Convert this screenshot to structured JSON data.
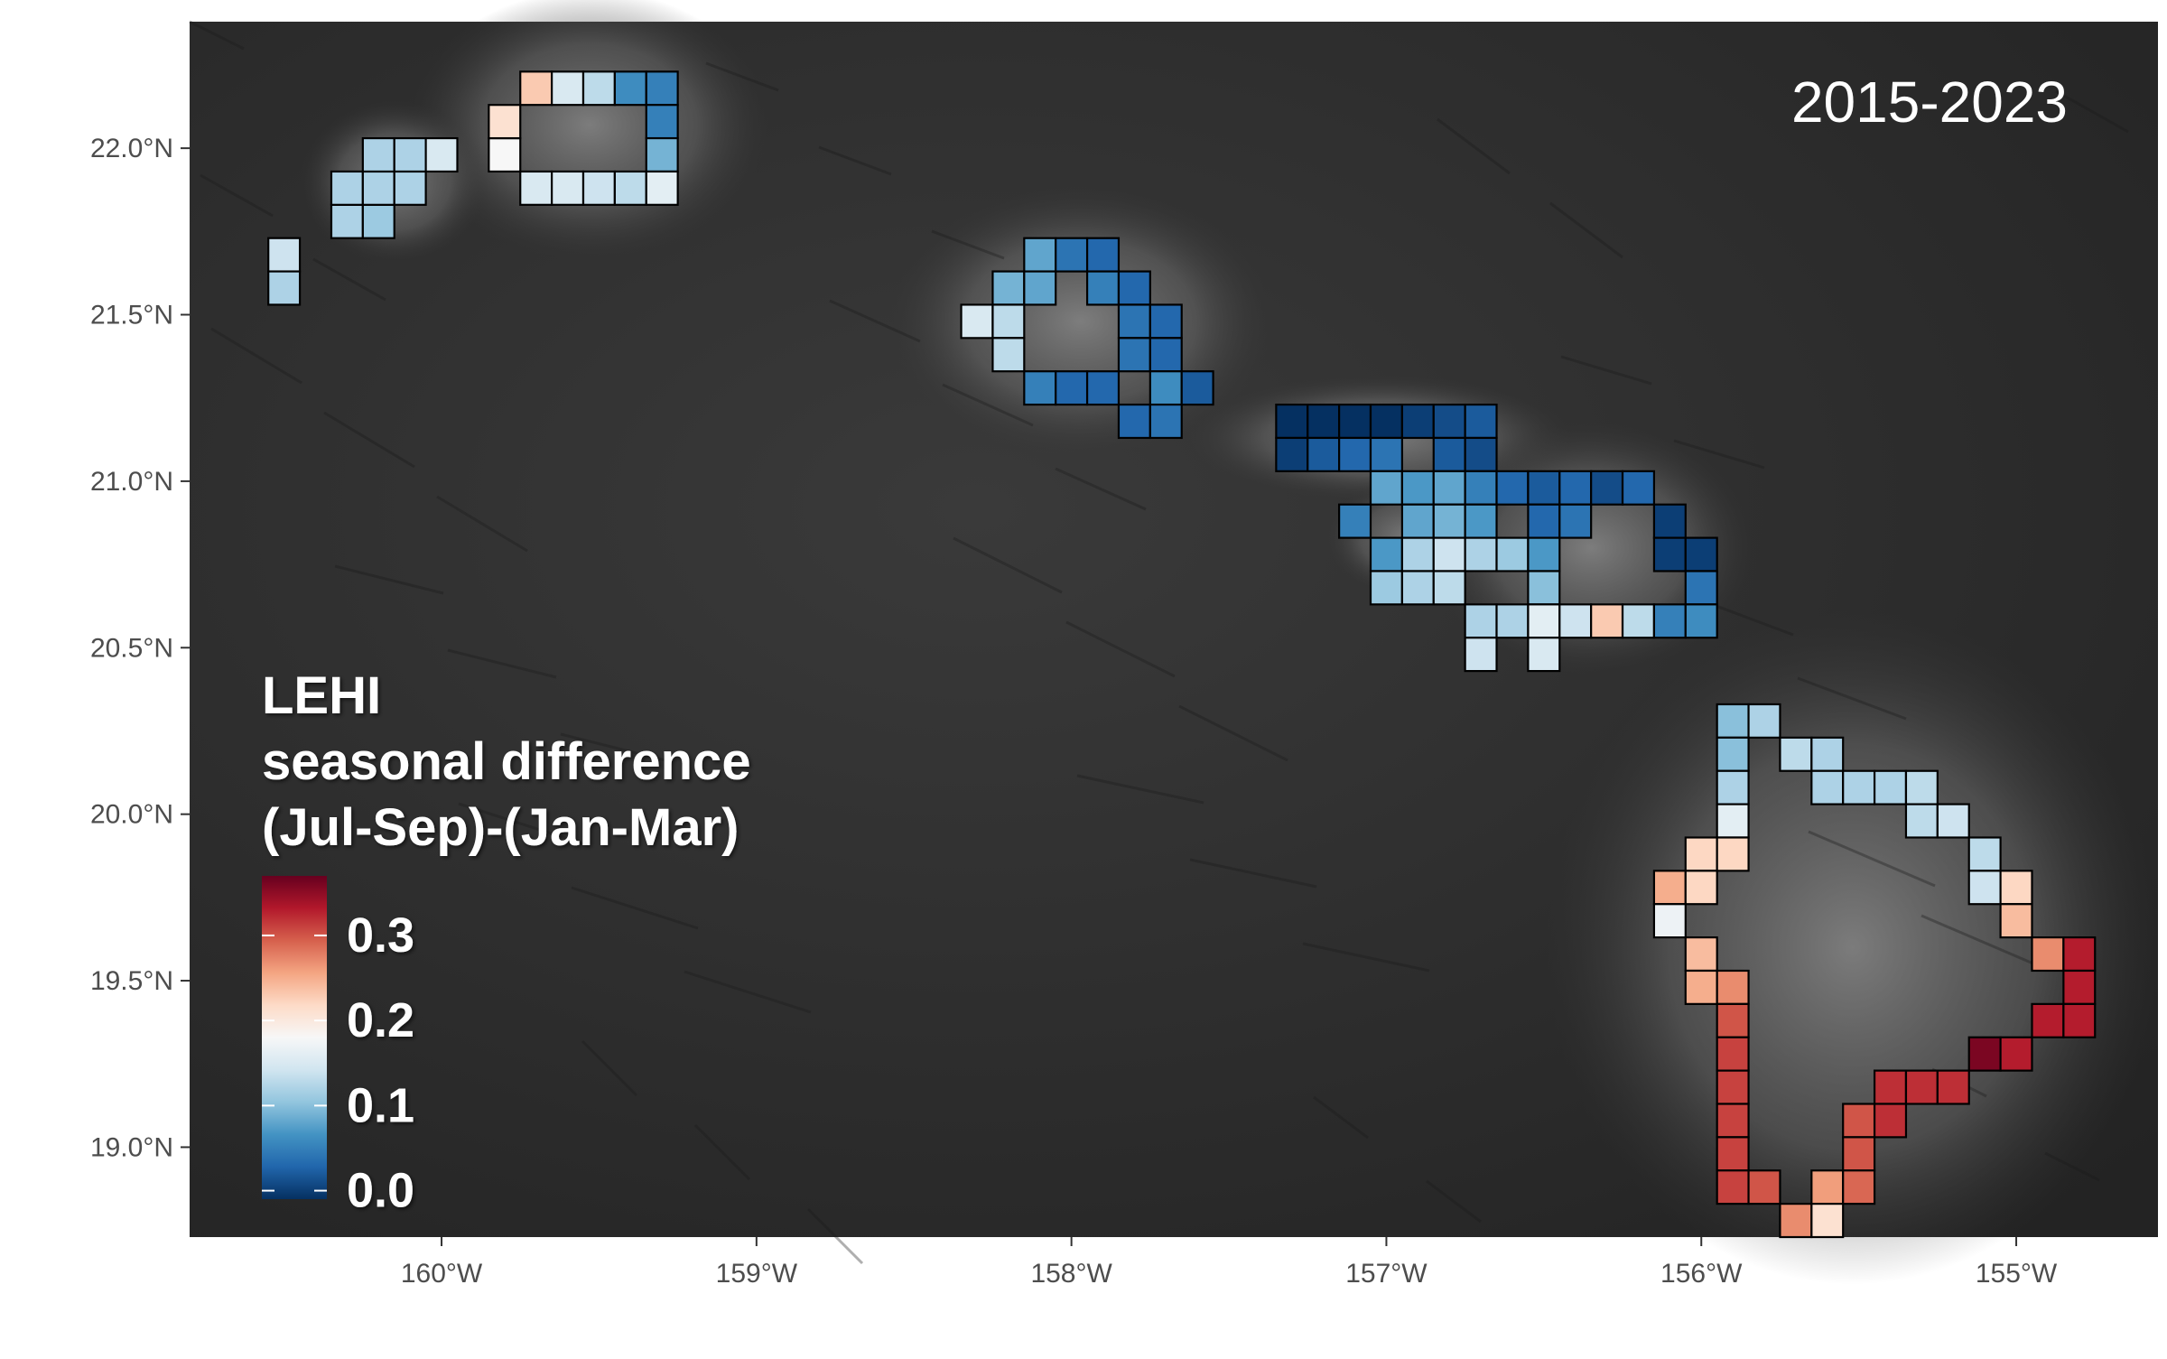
{
  "map": {
    "period_label": "2015-2023",
    "extent": {
      "lon_min": -160.8,
      "lon_max": -154.55,
      "lat_min": 18.73,
      "lat_max": 22.38
    },
    "x_axis": {
      "ticks": [
        -160,
        -159,
        -158,
        -157,
        -156,
        -155
      ],
      "labels": [
        "160°W",
        "159°W",
        "158°W",
        "157°W",
        "156°W",
        "155°W"
      ]
    },
    "y_axis": {
      "ticks": [
        19.0,
        19.5,
        20.0,
        20.5,
        21.0,
        21.5,
        22.0
      ],
      "labels": [
        "19.0°N",
        "19.5°N",
        "20.0°N",
        "20.5°N",
        "21.0°N",
        "21.5°N",
        "22.0°N"
      ]
    },
    "basemap": "dark grayscale satellite terrain",
    "cell_size_deg": 0.1
  },
  "legend": {
    "title_lines": [
      "LEHI",
      "seasonal difference",
      "(Jul-Sep)-(Jan-Mar)"
    ],
    "ticks": [
      0.0,
      0.1,
      0.2,
      0.3
    ],
    "tick_labels": [
      "0.0",
      "0.1",
      "0.2",
      "0.3"
    ],
    "range": [
      -0.01,
      0.37
    ],
    "palette": [
      "#053061",
      "#2166ac",
      "#4393c3",
      "#92c5de",
      "#d1e5f0",
      "#f7f7f7",
      "#fddbc7",
      "#f4a582",
      "#d6604d",
      "#b2182b",
      "#67001f"
    ]
  },
  "chart_data": {
    "type": "heatmap",
    "variable": "LEHI seasonal difference (Jul-Sep)-(Jan-Mar)",
    "period": "2015-2023",
    "cell_size_deg": 0.1,
    "cells": [
      {
        "lon": -160.5,
        "lat": 21.68,
        "value": 0.14
      },
      {
        "lon": -160.5,
        "lat": 21.58,
        "value": 0.12
      },
      {
        "lon": -160.3,
        "lat": 21.78,
        "value": 0.12
      },
      {
        "lon": -160.2,
        "lat": 21.78,
        "value": 0.11
      },
      {
        "lon": -160.3,
        "lat": 21.88,
        "value": 0.12
      },
      {
        "lon": -160.2,
        "lat": 21.88,
        "value": 0.12
      },
      {
        "lon": -160.1,
        "lat": 21.88,
        "value": 0.12
      },
      {
        "lon": -160.2,
        "lat": 21.98,
        "value": 0.12
      },
      {
        "lon": -160.1,
        "lat": 21.98,
        "value": 0.12
      },
      {
        "lon": -160.0,
        "lat": 21.98,
        "value": 0.15
      },
      {
        "lon": -159.8,
        "lat": 21.98,
        "value": 0.18
      },
      {
        "lon": -159.8,
        "lat": 22.08,
        "value": 0.21
      },
      {
        "lon": -159.7,
        "lat": 22.18,
        "value": 0.23
      },
      {
        "lon": -159.6,
        "lat": 22.18,
        "value": 0.15
      },
      {
        "lon": -159.5,
        "lat": 22.18,
        "value": 0.13
      },
      {
        "lon": -159.4,
        "lat": 22.18,
        "value": 0.06
      },
      {
        "lon": -159.3,
        "lat": 22.18,
        "value": 0.05
      },
      {
        "lon": -159.3,
        "lat": 22.08,
        "value": 0.05
      },
      {
        "lon": -159.3,
        "lat": 21.98,
        "value": 0.09
      },
      {
        "lon": -159.7,
        "lat": 21.88,
        "value": 0.15
      },
      {
        "lon": -159.6,
        "lat": 21.88,
        "value": 0.15
      },
      {
        "lon": -159.5,
        "lat": 21.88,
        "value": 0.14
      },
      {
        "lon": -159.4,
        "lat": 21.88,
        "value": 0.13
      },
      {
        "lon": -159.3,
        "lat": 21.88,
        "value": 0.16
      },
      {
        "lon": -158.1,
        "lat": 21.68,
        "value": 0.08
      },
      {
        "lon": -158.0,
        "lat": 21.68,
        "value": 0.04
      },
      {
        "lon": -157.9,
        "lat": 21.68,
        "value": 0.03
      },
      {
        "lon": -158.2,
        "lat": 21.58,
        "value": 0.09
      },
      {
        "lon": -158.1,
        "lat": 21.58,
        "value": 0.08
      },
      {
        "lon": -157.9,
        "lat": 21.58,
        "value": 0.05
      },
      {
        "lon": -157.8,
        "lat": 21.58,
        "value": 0.03
      },
      {
        "lon": -158.3,
        "lat": 21.48,
        "value": 0.15
      },
      {
        "lon": -158.2,
        "lat": 21.48,
        "value": 0.13
      },
      {
        "lon": -157.8,
        "lat": 21.48,
        "value": 0.04
      },
      {
        "lon": -157.7,
        "lat": 21.48,
        "value": 0.03
      },
      {
        "lon": -158.2,
        "lat": 21.38,
        "value": 0.13
      },
      {
        "lon": -157.8,
        "lat": 21.38,
        "value": 0.04
      },
      {
        "lon": -157.7,
        "lat": 21.38,
        "value": 0.03
      },
      {
        "lon": -158.1,
        "lat": 21.28,
        "value": 0.05
      },
      {
        "lon": -158.0,
        "lat": 21.28,
        "value": 0.03
      },
      {
        "lon": -157.9,
        "lat": 21.28,
        "value": 0.03
      },
      {
        "lon": -157.7,
        "lat": 21.28,
        "value": 0.06
      },
      {
        "lon": -157.6,
        "lat": 21.28,
        "value": 0.02
      },
      {
        "lon": -157.8,
        "lat": 21.18,
        "value": 0.03
      },
      {
        "lon": -157.7,
        "lat": 21.18,
        "value": 0.04
      },
      {
        "lon": -157.3,
        "lat": 21.18,
        "value": -0.01
      },
      {
        "lon": -157.2,
        "lat": 21.18,
        "value": -0.01
      },
      {
        "lon": -157.1,
        "lat": 21.18,
        "value": -0.01
      },
      {
        "lon": -157.0,
        "lat": 21.18,
        "value": -0.01
      },
      {
        "lon": -156.9,
        "lat": 21.18,
        "value": 0.0
      },
      {
        "lon": -156.8,
        "lat": 21.18,
        "value": 0.01
      },
      {
        "lon": -156.7,
        "lat": 21.18,
        "value": 0.02
      },
      {
        "lon": -157.3,
        "lat": 21.08,
        "value": 0.0
      },
      {
        "lon": -157.2,
        "lat": 21.08,
        "value": 0.02
      },
      {
        "lon": -157.1,
        "lat": 21.08,
        "value": 0.03
      },
      {
        "lon": -157.0,
        "lat": 21.08,
        "value": 0.04
      },
      {
        "lon": -156.8,
        "lat": 21.08,
        "value": 0.02
      },
      {
        "lon": -156.7,
        "lat": 21.08,
        "value": 0.01
      },
      {
        "lon": -157.0,
        "lat": 20.98,
        "value": 0.08
      },
      {
        "lon": -156.9,
        "lat": 20.98,
        "value": 0.07
      },
      {
        "lon": -156.8,
        "lat": 20.98,
        "value": 0.08
      },
      {
        "lon": -156.7,
        "lat": 20.98,
        "value": 0.05
      },
      {
        "lon": -156.6,
        "lat": 20.98,
        "value": 0.03
      },
      {
        "lon": -156.5,
        "lat": 20.98,
        "value": 0.02
      },
      {
        "lon": -156.4,
        "lat": 20.98,
        "value": 0.03
      },
      {
        "lon": -156.3,
        "lat": 20.98,
        "value": 0.01
      },
      {
        "lon": -156.2,
        "lat": 20.98,
        "value": 0.03
      },
      {
        "lon": -157.1,
        "lat": 20.88,
        "value": 0.05
      },
      {
        "lon": -156.9,
        "lat": 20.88,
        "value": 0.08
      },
      {
        "lon": -156.8,
        "lat": 20.88,
        "value": 0.09
      },
      {
        "lon": -156.7,
        "lat": 20.88,
        "value": 0.07
      },
      {
        "lon": -156.5,
        "lat": 20.88,
        "value": 0.03
      },
      {
        "lon": -156.4,
        "lat": 20.88,
        "value": 0.04
      },
      {
        "lon": -156.1,
        "lat": 20.88,
        "value": 0.0
      },
      {
        "lon": -157.0,
        "lat": 20.78,
        "value": 0.07
      },
      {
        "lon": -156.9,
        "lat": 20.78,
        "value": 0.12
      },
      {
        "lon": -156.8,
        "lat": 20.78,
        "value": 0.14
      },
      {
        "lon": -156.7,
        "lat": 20.78,
        "value": 0.12
      },
      {
        "lon": -156.6,
        "lat": 20.78,
        "value": 0.11
      },
      {
        "lon": -156.5,
        "lat": 20.78,
        "value": 0.07
      },
      {
        "lon": -156.1,
        "lat": 20.78,
        "value": 0.0
      },
      {
        "lon": -156.0,
        "lat": 20.78,
        "value": 0.0
      },
      {
        "lon": -157.0,
        "lat": 20.68,
        "value": 0.11
      },
      {
        "lon": -156.9,
        "lat": 20.68,
        "value": 0.12
      },
      {
        "lon": -156.8,
        "lat": 20.68,
        "value": 0.13
      },
      {
        "lon": -156.5,
        "lat": 20.68,
        "value": 0.1
      },
      {
        "lon": -156.0,
        "lat": 20.68,
        "value": 0.04
      },
      {
        "lon": -156.7,
        "lat": 20.58,
        "value": 0.12
      },
      {
        "lon": -156.6,
        "lat": 20.58,
        "value": 0.12
      },
      {
        "lon": -156.5,
        "lat": 20.58,
        "value": 0.16
      },
      {
        "lon": -156.4,
        "lat": 20.58,
        "value": 0.14
      },
      {
        "lon": -156.3,
        "lat": 20.58,
        "value": 0.23
      },
      {
        "lon": -156.2,
        "lat": 20.58,
        "value": 0.13
      },
      {
        "lon": -156.1,
        "lat": 20.58,
        "value": 0.05
      },
      {
        "lon": -156.0,
        "lat": 20.58,
        "value": 0.06
      },
      {
        "lon": -156.7,
        "lat": 20.48,
        "value": 0.14
      },
      {
        "lon": -156.5,
        "lat": 20.48,
        "value": 0.15
      },
      {
        "lon": -155.9,
        "lat": 20.28,
        "value": 0.1
      },
      {
        "lon": -155.8,
        "lat": 20.28,
        "value": 0.12
      },
      {
        "lon": -155.9,
        "lat": 20.18,
        "value": 0.1
      },
      {
        "lon": -155.7,
        "lat": 20.18,
        "value": 0.13
      },
      {
        "lon": -155.6,
        "lat": 20.18,
        "value": 0.12
      },
      {
        "lon": -155.9,
        "lat": 20.08,
        "value": 0.12
      },
      {
        "lon": -155.6,
        "lat": 20.08,
        "value": 0.12
      },
      {
        "lon": -155.5,
        "lat": 20.08,
        "value": 0.12
      },
      {
        "lon": -155.4,
        "lat": 20.08,
        "value": 0.12
      },
      {
        "lon": -155.3,
        "lat": 20.08,
        "value": 0.13
      },
      {
        "lon": -155.9,
        "lat": 19.98,
        "value": 0.16
      },
      {
        "lon": -155.3,
        "lat": 19.98,
        "value": 0.13
      },
      {
        "lon": -155.2,
        "lat": 19.98,
        "value": 0.14
      },
      {
        "lon": -156.0,
        "lat": 19.88,
        "value": 0.22
      },
      {
        "lon": -155.9,
        "lat": 19.88,
        "value": 0.22
      },
      {
        "lon": -155.1,
        "lat": 19.88,
        "value": 0.13
      },
      {
        "lon": -156.1,
        "lat": 19.78,
        "value": 0.25
      },
      {
        "lon": -156.0,
        "lat": 19.78,
        "value": 0.22
      },
      {
        "lon": -155.1,
        "lat": 19.78,
        "value": 0.14
      },
      {
        "lon": -155.0,
        "lat": 19.78,
        "value": 0.22
      },
      {
        "lon": -156.1,
        "lat": 19.68,
        "value": 0.17
      },
      {
        "lon": -155.0,
        "lat": 19.68,
        "value": 0.24
      },
      {
        "lon": -156.0,
        "lat": 19.58,
        "value": 0.24
      },
      {
        "lon": -154.9,
        "lat": 19.58,
        "value": 0.27
      },
      {
        "lon": -154.8,
        "lat": 19.58,
        "value": 0.33
      },
      {
        "lon": -156.0,
        "lat": 19.48,
        "value": 0.25
      },
      {
        "lon": -155.9,
        "lat": 19.48,
        "value": 0.27
      },
      {
        "lon": -154.8,
        "lat": 19.48,
        "value": 0.33
      },
      {
        "lon": -155.9,
        "lat": 19.38,
        "value": 0.3
      },
      {
        "lon": -154.9,
        "lat": 19.38,
        "value": 0.33
      },
      {
        "lon": -154.8,
        "lat": 19.38,
        "value": 0.33
      },
      {
        "lon": -155.9,
        "lat": 19.28,
        "value": 0.31
      },
      {
        "lon": -155.1,
        "lat": 19.28,
        "value": 0.36
      },
      {
        "lon": -155.0,
        "lat": 19.28,
        "value": 0.33
      },
      {
        "lon": -155.9,
        "lat": 19.18,
        "value": 0.31
      },
      {
        "lon": -155.4,
        "lat": 19.18,
        "value": 0.32
      },
      {
        "lon": -155.3,
        "lat": 19.18,
        "value": 0.32
      },
      {
        "lon": -155.2,
        "lat": 19.18,
        "value": 0.32
      },
      {
        "lon": -155.9,
        "lat": 19.08,
        "value": 0.31
      },
      {
        "lon": -155.5,
        "lat": 19.08,
        "value": 0.3
      },
      {
        "lon": -155.4,
        "lat": 19.08,
        "value": 0.32
      },
      {
        "lon": -155.9,
        "lat": 18.98,
        "value": 0.31
      },
      {
        "lon": -155.5,
        "lat": 18.98,
        "value": 0.3
      },
      {
        "lon": -155.9,
        "lat": 18.88,
        "value": 0.31
      },
      {
        "lon": -155.8,
        "lat": 18.88,
        "value": 0.3
      },
      {
        "lon": -155.6,
        "lat": 18.88,
        "value": 0.26
      },
      {
        "lon": -155.5,
        "lat": 18.88,
        "value": 0.29
      },
      {
        "lon": -155.7,
        "lat": 18.78,
        "value": 0.27
      },
      {
        "lon": -155.6,
        "lat": 18.78,
        "value": 0.21
      }
    ]
  }
}
